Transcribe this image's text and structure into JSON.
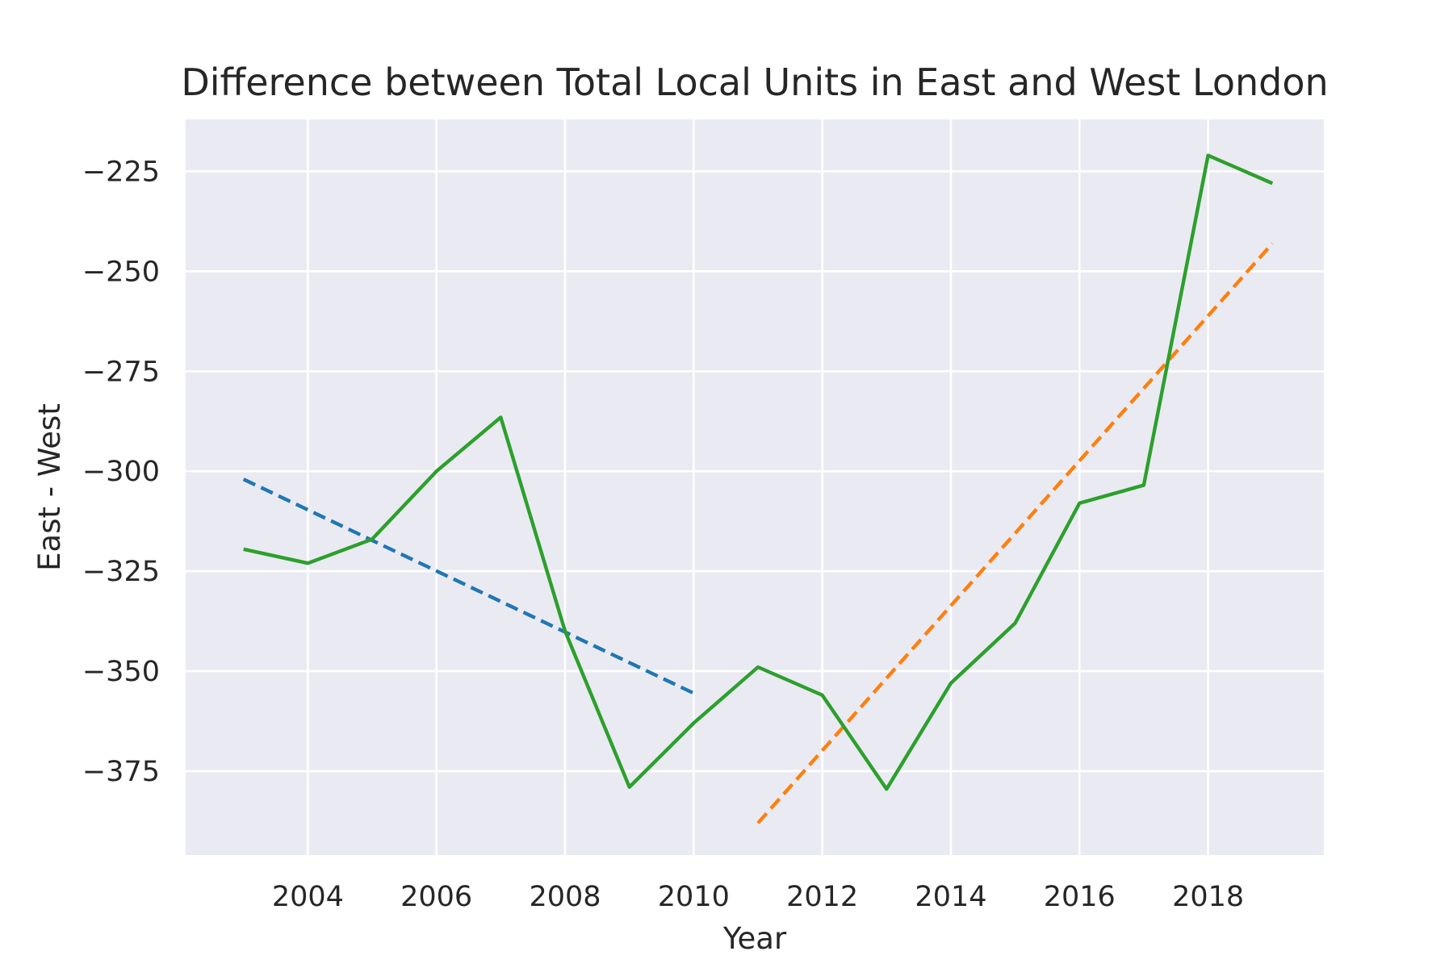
{
  "chart_data": {
    "type": "line",
    "title": "Difference between Total Local Units in East and West London",
    "xlabel": "Year",
    "ylabel": "East - West",
    "xlim": [
      2002.1,
      2019.8
    ],
    "ylim": [
      -396,
      -212
    ],
    "x_ticks": [
      2004,
      2006,
      2008,
      2010,
      2012,
      2014,
      2016,
      2018
    ],
    "y_ticks": [
      -225,
      -250,
      -275,
      -300,
      -325,
      -350,
      -375
    ],
    "x_tick_labels": [
      "2004",
      "2006",
      "2008",
      "2010",
      "2012",
      "2014",
      "2016",
      "2018"
    ],
    "y_tick_labels": [
      "−225",
      "−250",
      "−275",
      "−300",
      "−325",
      "−350",
      "−375"
    ],
    "grid": true,
    "background": "#eaeaf2",
    "series": [
      {
        "kind": "solid",
        "color": "#2ca02c",
        "x": [
          2003,
          2004,
          2005,
          2006,
          2007,
          2008,
          2009,
          2010,
          2011,
          2012,
          2013,
          2014,
          2015,
          2016,
          2017,
          2018,
          2019
        ],
        "values": [
          -319.5,
          -323,
          -317,
          -300,
          -286.5,
          -340,
          -379,
          -363,
          -349,
          -356,
          -379.5,
          -353,
          -338,
          -308,
          -303.5,
          -221,
          -228
        ]
      },
      {
        "kind": "dashed",
        "color": "#1f77b4",
        "x": [
          2003,
          2010
        ],
        "values": [
          -302,
          -355.5
        ]
      },
      {
        "kind": "dashed",
        "color": "#ff7f0e",
        "x": [
          2011,
          2019
        ],
        "values": [
          -388,
          -243
        ]
      }
    ]
  }
}
